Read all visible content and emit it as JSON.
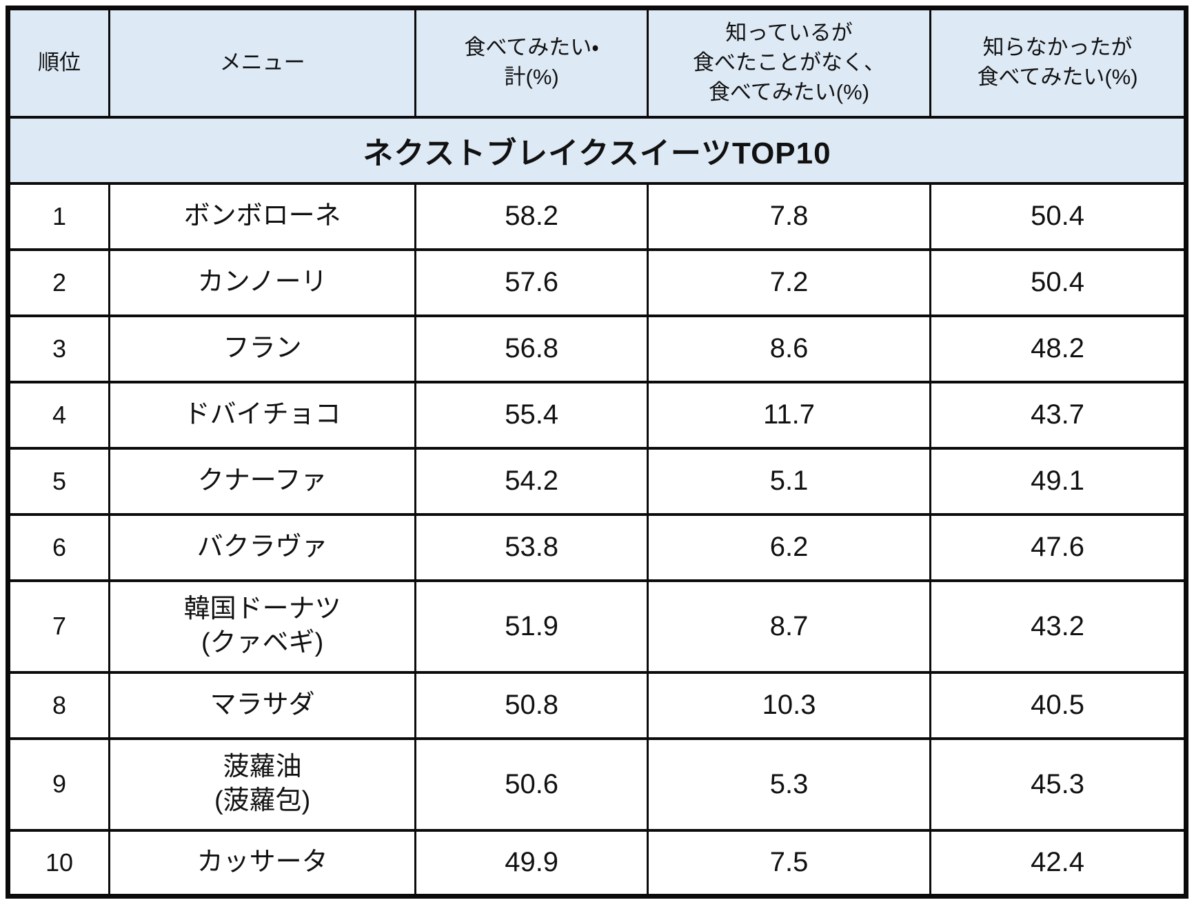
{
  "title": "ネクストブレイクスイーツTOP10",
  "colors": {
    "header_bg": "#dde9f5",
    "border": "#0b0b0b",
    "body_bg": "#ffffff",
    "text": "#111111"
  },
  "table": {
    "header": {
      "rank": "順位",
      "menu": "メニュー",
      "total": "食べてみたい・\n計(%)",
      "known": "知っているが\n食べたことがなく、\n食べてみたい(%)",
      "unknown": "知らなかったが\n食べてみたい(%)"
    },
    "rows": [
      {
        "rank": "1",
        "menu": "ボンボローネ",
        "total": "58.2",
        "known": "7.8",
        "unknown": "50.4"
      },
      {
        "rank": "2",
        "menu": "カンノーリ",
        "total": "57.6",
        "known": "7.2",
        "unknown": "50.4"
      },
      {
        "rank": "3",
        "menu": "フラン",
        "total": "56.8",
        "known": "8.6",
        "unknown": "48.2"
      },
      {
        "rank": "4",
        "menu": "ドバイチョコ",
        "total": "55.4",
        "known": "11.7",
        "unknown": "43.7"
      },
      {
        "rank": "5",
        "menu": "クナーファ",
        "total": "54.2",
        "known": "5.1",
        "unknown": "49.1"
      },
      {
        "rank": "6",
        "menu": "バクラヴァ",
        "total": "53.8",
        "known": "6.2",
        "unknown": "47.6"
      },
      {
        "rank": "7",
        "menu": "韓国ドーナツ\n(クァベギ)",
        "total": "51.9",
        "known": "8.7",
        "unknown": "43.2"
      },
      {
        "rank": "8",
        "menu": "マラサダ",
        "total": "50.8",
        "known": "10.3",
        "unknown": "40.5"
      },
      {
        "rank": "9",
        "menu": "菠蘿油\n(菠蘿包)",
        "total": "50.6",
        "known": "5.3",
        "unknown": "45.3"
      },
      {
        "rank": "10",
        "menu": "カッサータ",
        "total": "49.9",
        "known": "7.5",
        "unknown": "42.4"
      }
    ]
  },
  "chart_data": {
    "type": "table",
    "title": "ネクストブレイクスイーツTOP10",
    "columns": [
      "順位",
      "メニュー",
      "食べてみたい・計(%)",
      "知っているが食べたことがなく、食べてみたい(%)",
      "知らなかったが食べてみたい(%)"
    ],
    "rows": [
      [
        1,
        "ボンボローネ",
        58.2,
        7.8,
        50.4
      ],
      [
        2,
        "カンノーリ",
        57.6,
        7.2,
        50.4
      ],
      [
        3,
        "フラン",
        56.8,
        8.6,
        48.2
      ],
      [
        4,
        "ドバイチョコ",
        55.4,
        11.7,
        43.7
      ],
      [
        5,
        "クナーファ",
        54.2,
        5.1,
        49.1
      ],
      [
        6,
        "バクラヴァ",
        53.8,
        6.2,
        47.6
      ],
      [
        7,
        "韓国ドーナツ(クァベギ)",
        51.9,
        8.7,
        43.2
      ],
      [
        8,
        "マラサダ",
        50.8,
        10.3,
        40.5
      ],
      [
        9,
        "菠蘿油(菠蘿包)",
        50.6,
        5.3,
        45.3
      ],
      [
        10,
        "カッサータ",
        49.9,
        7.5,
        42.4
      ]
    ]
  }
}
